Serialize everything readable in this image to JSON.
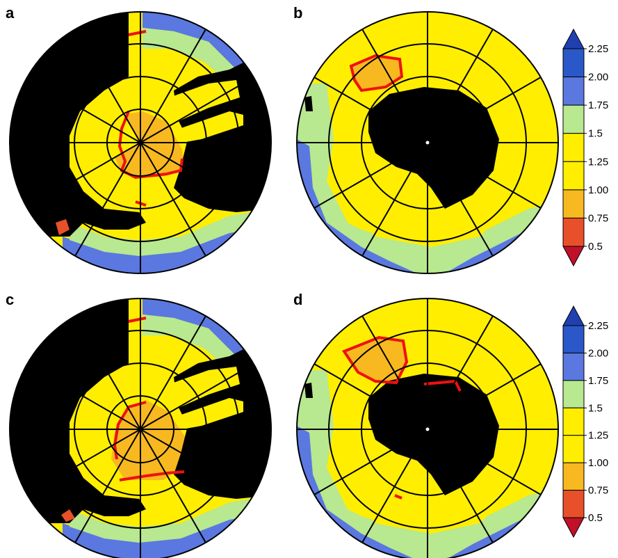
{
  "figure": {
    "panel_labels": [
      "a",
      "b",
      "c",
      "d"
    ]
  },
  "chart_data": {
    "type": "heatmap",
    "projection": "polar stereographic",
    "colorbar": {
      "ticks": [
        "0.5",
        "0.75",
        "1.00",
        "1.25",
        "1.5",
        "1.75",
        "2.00",
        "2.25"
      ],
      "colors": [
        "#c0102a",
        "#e8502a",
        "#f8b820",
        "#ffee00",
        "#ffee00",
        "#b8e890",
        "#5a78e0",
        "#2a58c8",
        "#2040b0"
      ],
      "extend": "both"
    },
    "styling": {
      "masked_color": "#000000",
      "contour_color": "#ee1111",
      "ocean_base_color": "#ffee00"
    },
    "panels": [
      {
        "label": "a",
        "center_mask": "black sectors",
        "contour_level": "0.75"
      },
      {
        "label": "b",
        "center_mask": "black disk",
        "contour_level": "0.75"
      },
      {
        "label": "c",
        "center_mask": "black sectors",
        "contour_level": "0.75"
      },
      {
        "label": "d",
        "center_mask": "black disk",
        "contour_level": "0.75"
      }
    ]
  }
}
